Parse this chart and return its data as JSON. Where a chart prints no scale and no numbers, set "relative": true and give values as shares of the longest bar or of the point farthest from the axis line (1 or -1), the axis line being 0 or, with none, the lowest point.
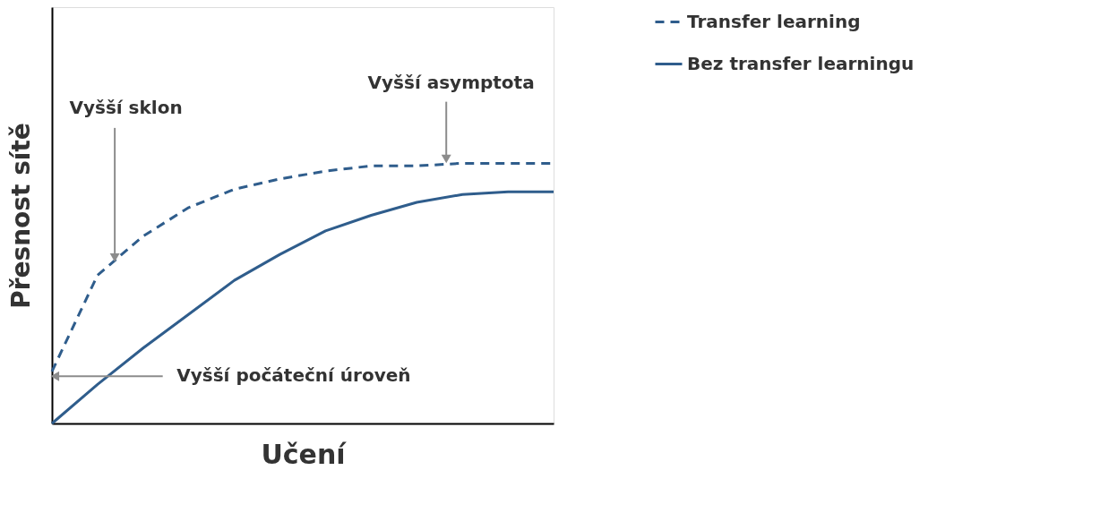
{
  "chart_data": {
    "type": "line",
    "relative": true,
    "xlabel": "Učení",
    "ylabel": "Přesnost sítě",
    "categories": [
      null,
      null,
      null,
      null,
      null,
      null,
      null,
      null,
      null,
      null,
      null,
      null
    ],
    "series": [
      {
        "name": "Transfer learning",
        "color": "#2f5d8c",
        "line_style": "dashed",
        "values": [
          0.2,
          0.57,
          0.72,
          0.83,
          0.9,
          0.94,
          0.97,
          0.99,
          0.99,
          1.0,
          1.0,
          1.0
        ]
      },
      {
        "name": "Bez transfer learningu",
        "color": "#2f5d8c",
        "line_style": "solid",
        "values": [
          0,
          0.15,
          0.29,
          0.42,
          0.55,
          0.65,
          0.74,
          0.8,
          0.85,
          0.88,
          0.89,
          0.89
        ]
      }
    ],
    "annotations": [
      "Vyšší sklon",
      "Vyšší asymptota",
      "Vyšší počáteční úroveň"
    ],
    "legend": "right",
    "marker": "none",
    "grid": false
  }
}
